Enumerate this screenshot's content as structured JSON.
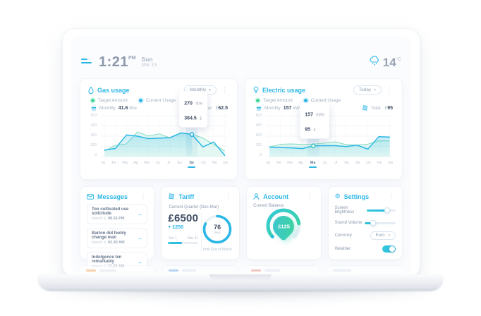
{
  "topbar": {
    "time": "1:21",
    "meridiem": "PM",
    "day": "Sun",
    "date": "Mar 13",
    "temperature": "14",
    "temp_unit": "°C"
  },
  "gas": {
    "title": "Gas usage",
    "period": "Monthly",
    "legend_target": "Target Amount",
    "legend_current": "Current Usage",
    "stat_period_label": "Monthly",
    "stat_value": "41.6",
    "stat_unit": "litre",
    "total_label": "Total",
    "total_currency": "£",
    "total_value": "62.5"
  },
  "electric": {
    "title": "Electric usage",
    "period": "Today",
    "legend_target": "Target Amount",
    "legend_current": "Current Usage",
    "stat_period_label": "Monthly",
    "stat_value": "157",
    "stat_unit": "kWh",
    "total_label": "Total",
    "total_currency": "£",
    "total_value": "95"
  },
  "messages": {
    "title": "Messages",
    "items": [
      {
        "text": "Too cultivated use solicitude",
        "date": "March 5,",
        "time": "08.55 PM"
      },
      {
        "text": "Barton did feebly change man",
        "date": "March 4,",
        "time": "02.30 AM"
      },
      {
        "text": "Indulgence ten remarkably",
        "date": "March 2,",
        "time": "11.20 AM"
      }
    ]
  },
  "tariff": {
    "title": "Tariff",
    "subtitle": "Current Quarter (Dec-Mar)",
    "amount": "£6500",
    "delta": "+ £250",
    "start_label": "Jan 1",
    "end_label": "Mar 31",
    "progress_pct": 45,
    "days": "76",
    "days_label": "days",
    "ring_pct": 82,
    "until": "Until End of March"
  },
  "account": {
    "title": "Account",
    "balance_label": "Current Balance",
    "balance": "£125",
    "gauge_pct": 80
  },
  "settings": {
    "title": "Settings",
    "brightness_label": "Screen brightness",
    "brightness_pct": 72,
    "volume_label": "Sound Volume",
    "volume_pct": 28,
    "currency_label": "Currency",
    "currency_value": "Euro",
    "weather_label": "Weather",
    "weather_on": true
  },
  "chart_data": [
    {
      "type": "area",
      "title": "Gas usage",
      "categories": [
        "Ja",
        "Fe",
        "Ma",
        "Ap",
        "Ma",
        "Ju",
        "Jl",
        "Au",
        "Se",
        "Oc",
        "No",
        "De"
      ],
      "series": [
        {
          "name": "Target Amount",
          "values": [
            70,
            138,
            155,
            300,
            252,
            278,
            228,
            290,
            272,
            228,
            148,
            70
          ]
        },
        {
          "name": "Current Usage",
          "values": [
            80,
            100,
            265,
            250,
            220,
            225,
            232,
            290,
            270,
            118,
            178,
            15
          ]
        }
      ],
      "ylim": [
        0,
        500
      ],
      "yticks": [
        0,
        200,
        300,
        400,
        500
      ],
      "xlabel": "",
      "ylabel": "",
      "grid": true,
      "legend_position": "top",
      "highlight_index": 8,
      "highlight_label": "Se",
      "tooltip": {
        "value": "270",
        "unit": "litre",
        "cost": "364.5",
        "currency": "£"
      },
      "area_fill": "to-highlight",
      "marker_color": "#2bb7e5"
    },
    {
      "type": "area",
      "title": "Electric usage",
      "categories": [
        "Ja",
        "Fe",
        "Ma",
        "Ap",
        "Ma",
        "Ju",
        "Jl",
        "Au",
        "Se",
        "Oc",
        "No",
        "De"
      ],
      "series": [
        {
          "name": "Target Amount",
          "values": [
            142,
            180,
            186,
            178,
            182,
            198,
            215,
            176,
            168,
            182,
            232,
            230
          ]
        },
        {
          "name": "Current Usage",
          "values": [
            140,
            132,
            128,
            118,
            157,
            162,
            160,
            148,
            168,
            110,
            292,
            286
          ]
        }
      ],
      "ylim": [
        0,
        600
      ],
      "yticks": [
        0,
        150,
        300,
        450,
        600
      ],
      "xlabel": "",
      "ylabel": "",
      "grid": true,
      "legend_position": "top",
      "highlight_index": 4,
      "highlight_label": "Ma",
      "tooltip": {
        "value": "157",
        "unit": "kWh",
        "cost": "95",
        "currency": "£"
      },
      "area_fill": "full",
      "marker_color": "#3cc9b8"
    }
  ]
}
